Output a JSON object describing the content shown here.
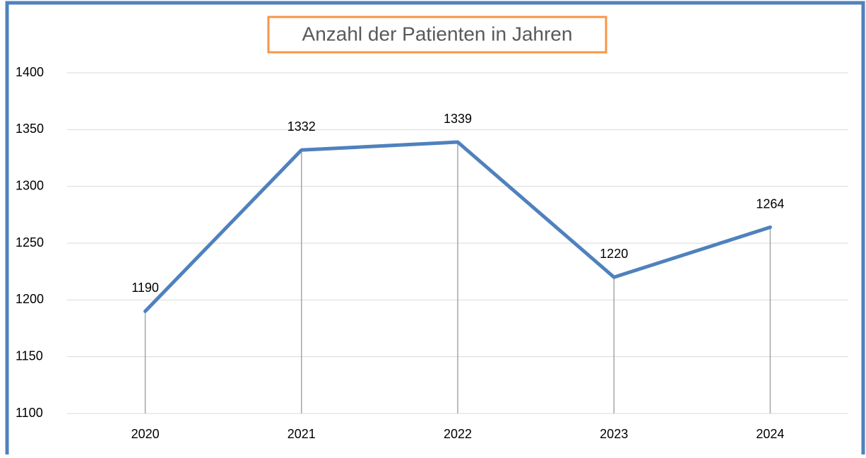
{
  "chart_data": {
    "type": "line",
    "title": "Anzahl der Patienten in Jahren",
    "categories": [
      "2020",
      "2021",
      "2022",
      "2023",
      "2024"
    ],
    "series": [
      {
        "color": "#4f81bd",
        "values": [
          1190,
          1332,
          1339,
          1220,
          1264
        ]
      }
    ],
    "ylim": [
      1100,
      1400
    ],
    "yticks": [
      1100,
      1150,
      1200,
      1250,
      1300,
      1350,
      1400
    ],
    "grid": true,
    "drop_lines": true
  }
}
